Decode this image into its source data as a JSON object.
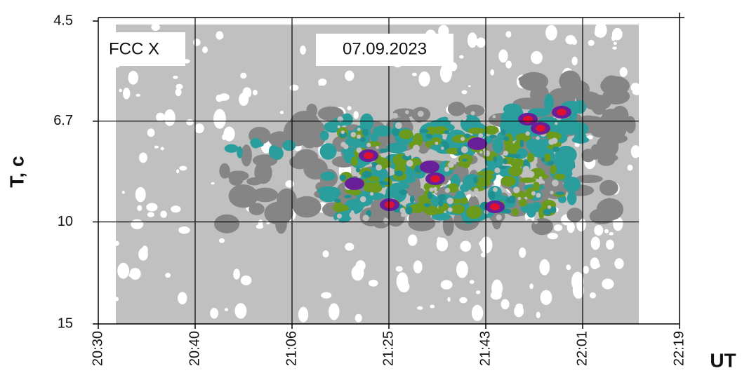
{
  "chart_data": {
    "type": "contour",
    "annotations": [
      "FCC X",
      "07.09.2023"
    ],
    "xlabel": "UT",
    "ylabel": "T, c",
    "categories": [
      "20:30",
      "20:40",
      "21:06",
      "21:25",
      "21:43",
      "22:01",
      "22:19"
    ],
    "ylim": [
      4.5,
      15
    ],
    "yticks": [
      4.5,
      6.7,
      10,
      15
    ],
    "log_y": true,
    "y_inverted": true,
    "grid": true
  }
}
